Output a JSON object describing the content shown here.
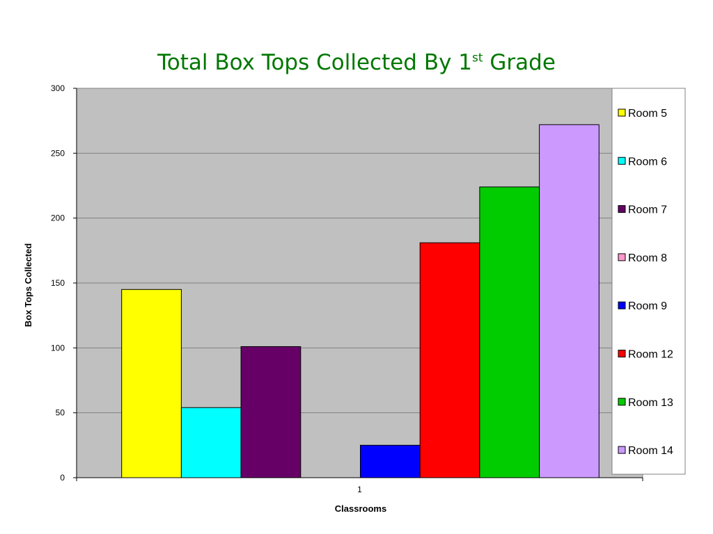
{
  "title": {
    "main": "Total Box Tops Collected By 1",
    "superscript": "st",
    "suffix": " Grade"
  },
  "chart_data": {
    "type": "bar",
    "categories": [
      "1"
    ],
    "series": [
      {
        "name": "Room 5",
        "values": [
          145
        ],
        "color": "#ffff00"
      },
      {
        "name": "Room 6",
        "values": [
          54
        ],
        "color": "#00ffff"
      },
      {
        "name": "Room 7",
        "values": [
          101
        ],
        "color": "#660066"
      },
      {
        "name": "Room 8",
        "values": [
          0
        ],
        "color": "#ff99cc"
      },
      {
        "name": "Room 9",
        "values": [
          25
        ],
        "color": "#0000ff"
      },
      {
        "name": "Room 12",
        "values": [
          181
        ],
        "color": "#ff0000"
      },
      {
        "name": "Room 13",
        "values": [
          224
        ],
        "color": "#00cc00"
      },
      {
        "name": "Room 14",
        "values": [
          272
        ],
        "color": "#cc99ff"
      }
    ],
    "xlabel": "Classrooms",
    "ylabel": "Box Tops Collected",
    "ylim": [
      0,
      300
    ],
    "yticks": [
      0,
      50,
      100,
      150,
      200,
      250,
      300
    ],
    "grid": true,
    "plot_background": "#c0c0c0",
    "legend_position": "right"
  }
}
